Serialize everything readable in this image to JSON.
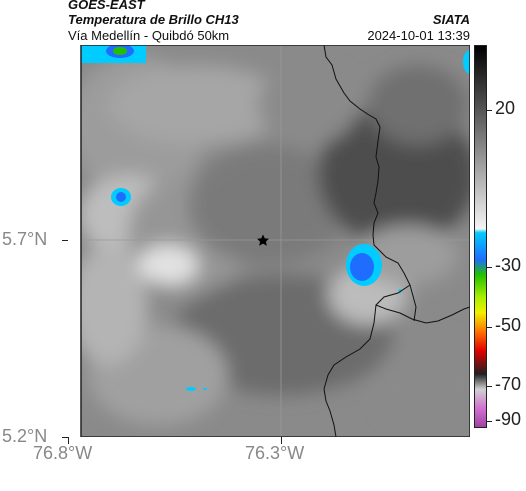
{
  "header": {
    "line1": "GOES-EAST",
    "line2": "Temperatura de Brillo CH13",
    "line3": "Vía Medellín - Quibdó 50km",
    "org": "SIATA",
    "timestamp": "2024-10-01 13:39"
  },
  "axes": {
    "lat_labels": [
      "5.7°N",
      "5.2°N"
    ],
    "lon_labels": [
      "76.8°W",
      "76.3°W"
    ]
  },
  "colorbar": {
    "ticks": [
      "20",
      "-30",
      "-50",
      "-70",
      "-90"
    ]
  },
  "colors": {
    "cold_cyan": "#00ccff",
    "cold_blue": "#1f6dff",
    "green": "#22c000",
    "yellow": "#f0f000",
    "red": "#e00000",
    "magenta": "#b040b0"
  },
  "icons": {
    "marker": "star-marker-icon"
  }
}
